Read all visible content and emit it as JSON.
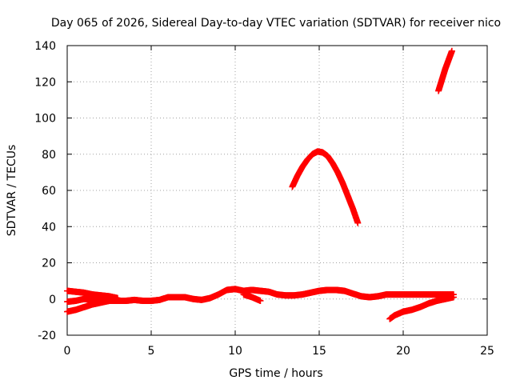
{
  "chart_data": {
    "type": "scatter",
    "title": "Day 065 of 2026, Sidereal Day-to-day VTEC variation (SDTVAR) for receiver nico",
    "xlabel": "GPS time / hours",
    "ylabel": "SDTVAR / TECUs",
    "xlim": [
      0,
      25
    ],
    "ylim": [
      -20,
      140
    ],
    "xticks": [
      0,
      5,
      10,
      15,
      20,
      25
    ],
    "yticks": [
      -20,
      0,
      20,
      40,
      60,
      80,
      100,
      120,
      140
    ],
    "xtick_labels": [
      "0",
      "5",
      "10",
      "15",
      "20",
      "25"
    ],
    "ytick_labels": [
      "-20",
      "0",
      "20",
      "40",
      "60",
      "80",
      "100",
      "120",
      "140"
    ],
    "grid": true,
    "marker": "plus",
    "color": "#ff0000",
    "series": [
      {
        "x": [
          0.0,
          0.5,
          1.0,
          1.5,
          2.0,
          2.5,
          3.0
        ],
        "y": [
          4.5,
          4.0,
          3.5,
          2.5,
          2.0,
          1.5,
          0.5
        ]
      },
      {
        "x": [
          0.0,
          0.5,
          1.0,
          1.5,
          2.0,
          2.5,
          3.0
        ],
        "y": [
          -7.0,
          -6.0,
          -4.5,
          -3.0,
          -2.0,
          -1.0,
          -0.5
        ]
      },
      {
        "x": [
          0.0,
          0.5,
          1.0,
          1.5,
          2.0,
          2.5,
          3.0
        ],
        "y": [
          -1.5,
          -1.0,
          0.0,
          -0.5,
          -1.5,
          -1.0,
          -1.0
        ]
      },
      {
        "x": [
          3.0,
          3.5,
          4.0,
          4.5,
          5.0,
          5.5,
          6.0,
          6.5,
          7.0,
          7.5,
          8.0,
          8.5,
          9.0,
          9.5,
          10.0,
          10.5,
          11.0,
          11.5,
          12.0,
          12.5,
          13.0,
          13.5,
          14.0,
          14.5,
          15.0,
          15.5,
          16.0,
          16.5,
          17.0,
          17.5,
          18.0,
          18.5,
          19.0,
          19.5,
          20.0,
          20.5,
          21.0,
          21.5,
          22.0,
          22.5,
          23.0
        ],
        "y": [
          -1.0,
          -1.0,
          -0.5,
          -1.0,
          -1.0,
          -0.5,
          1.0,
          1.0,
          1.0,
          0.0,
          -0.5,
          0.5,
          2.5,
          5.0,
          5.5,
          4.5,
          5.0,
          4.5,
          4.0,
          2.5,
          2.0,
          2.0,
          2.5,
          3.5,
          4.5,
          5.0,
          5.0,
          4.5,
          3.0,
          1.5,
          1.0,
          1.5,
          2.5,
          2.5,
          2.5,
          2.5,
          2.5,
          2.5,
          2.5,
          2.5,
          2.5
        ]
      },
      {
        "x": [
          10.5,
          11.0,
          11.5
        ],
        "y": [
          2.5,
          1.0,
          -1.0
        ]
      },
      {
        "x": [
          19.2,
          19.5,
          20.0,
          20.5,
          21.0,
          21.5,
          22.0,
          22.5,
          23.0
        ],
        "y": [
          -11.0,
          -9.0,
          -7.0,
          -6.0,
          -4.5,
          -2.5,
          -1.0,
          0.0,
          1.0
        ]
      },
      {
        "x": [
          13.4,
          13.7,
          14.0,
          14.3,
          14.6,
          14.9,
          15.2,
          15.5,
          15.8,
          16.1,
          16.4,
          16.7,
          17.0,
          17.3
        ],
        "y": [
          62,
          68,
          73,
          77,
          80,
          81.5,
          81,
          79,
          75,
          70,
          64,
          57,
          50,
          42
        ]
      },
      {
        "x": [
          22.1,
          22.3,
          22.5,
          22.7,
          22.9
        ],
        "y": [
          115,
          121,
          127,
          132,
          137
        ]
      }
    ]
  }
}
